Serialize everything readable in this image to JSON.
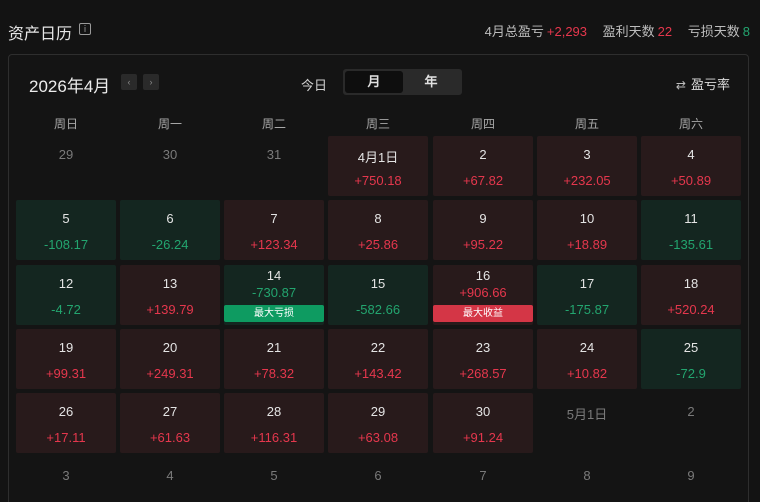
{
  "header": {
    "title": "资产日历",
    "info_icon": "ⅰ",
    "stats": [
      {
        "label": "4月总盈亏",
        "value": "+2,293",
        "tone": "red"
      },
      {
        "label": "盈利天数",
        "value": "22",
        "tone": "red"
      },
      {
        "label": "亏损天数",
        "value": "8",
        "tone": "green"
      }
    ]
  },
  "toolbar": {
    "month_title": "2026年4月",
    "prev": "‹",
    "next": "›",
    "today": "今日",
    "views": [
      "月",
      "年"
    ],
    "ratio_icon": "⇄",
    "ratio_label": "盈亏率"
  },
  "weekdays": [
    "周日",
    "周一",
    "周二",
    "周三",
    "周四",
    "周五",
    "周六"
  ],
  "weeks": [
    [
      {
        "day": "29",
        "other": true
      },
      {
        "day": "30",
        "other": true
      },
      {
        "day": "31",
        "other": true
      },
      {
        "day": "4月1日",
        "value": "+750.18",
        "tone": "pos"
      },
      {
        "day": "2",
        "value": "+67.82",
        "tone": "pos"
      },
      {
        "day": "3",
        "value": "+232.05",
        "tone": "pos"
      },
      {
        "day": "4",
        "value": "+50.89",
        "tone": "pos"
      }
    ],
    [
      {
        "day": "5",
        "value": "-108.17",
        "tone": "neg"
      },
      {
        "day": "6",
        "value": "-26.24",
        "tone": "neg"
      },
      {
        "day": "7",
        "value": "+123.34",
        "tone": "pos"
      },
      {
        "day": "8",
        "value": "+25.86",
        "tone": "pos"
      },
      {
        "day": "9",
        "value": "+95.22",
        "tone": "pos"
      },
      {
        "day": "10",
        "value": "+18.89",
        "tone": "pos"
      },
      {
        "day": "11",
        "value": "-135.61",
        "tone": "neg"
      }
    ],
    [
      {
        "day": "12",
        "value": "-4.72",
        "tone": "neg"
      },
      {
        "day": "13",
        "value": "+139.79",
        "tone": "pos"
      },
      {
        "day": "14",
        "value": "-730.87",
        "tone": "neg",
        "badge": "最大亏损",
        "badge_tone": "loss"
      },
      {
        "day": "15",
        "value": "-582.66",
        "tone": "neg"
      },
      {
        "day": "16",
        "value": "+906.66",
        "tone": "pos",
        "badge": "最大收益",
        "badge_tone": "gain"
      },
      {
        "day": "17",
        "value": "-175.87",
        "tone": "neg"
      },
      {
        "day": "18",
        "value": "+520.24",
        "tone": "pos"
      }
    ],
    [
      {
        "day": "19",
        "value": "+99.31",
        "tone": "pos"
      },
      {
        "day": "20",
        "value": "+249.31",
        "tone": "pos"
      },
      {
        "day": "21",
        "value": "+78.32",
        "tone": "pos"
      },
      {
        "day": "22",
        "value": "+143.42",
        "tone": "pos"
      },
      {
        "day": "23",
        "value": "+268.57",
        "tone": "pos"
      },
      {
        "day": "24",
        "value": "+10.82",
        "tone": "pos"
      },
      {
        "day": "25",
        "value": "-72.9",
        "tone": "neg"
      }
    ],
    [
      {
        "day": "26",
        "value": "+17.11",
        "tone": "pos"
      },
      {
        "day": "27",
        "value": "+61.63",
        "tone": "pos"
      },
      {
        "day": "28",
        "value": "+116.31",
        "tone": "pos"
      },
      {
        "day": "29",
        "value": "+63.08",
        "tone": "pos"
      },
      {
        "day": "30",
        "value": "+91.24",
        "tone": "pos"
      },
      {
        "day": "5月1日",
        "other": true
      },
      {
        "day": "2",
        "other": true
      }
    ],
    [
      {
        "day": "3",
        "other": true
      },
      {
        "day": "4",
        "other": true
      },
      {
        "day": "5",
        "other": true
      },
      {
        "day": "6",
        "other": true
      },
      {
        "day": "7",
        "other": true
      },
      {
        "day": "8",
        "other": true
      },
      {
        "day": "9",
        "other": true
      }
    ]
  ],
  "colors": {
    "profit": "#e5374d",
    "loss": "#23a56f",
    "profit_bg": "#281a1b",
    "loss_bg": "#142620"
  }
}
